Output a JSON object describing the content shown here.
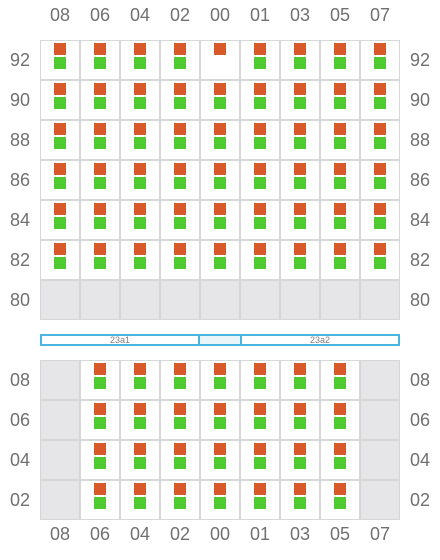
{
  "columns": [
    "08",
    "06",
    "04",
    "02",
    "00",
    "01",
    "03",
    "05",
    "07"
  ],
  "top_rows": [
    "92",
    "90",
    "88",
    "86",
    "84",
    "82",
    "80"
  ],
  "bottom_rows": [
    "08",
    "06",
    "04",
    "02"
  ],
  "colors": {
    "upper_square": "#d85a2a",
    "lower_square": "#4fcb2f",
    "empty_cell": "#e6e6e8",
    "grid_line": "#d6d6d6",
    "divider": "#49b6e0"
  },
  "divider": {
    "left_label": "23a1",
    "right_label": "23a2"
  },
  "top_cells": [
    [
      "both",
      "both",
      "both",
      "both",
      "upper",
      "both",
      "both",
      "both",
      "both"
    ],
    [
      "both",
      "both",
      "both",
      "both",
      "both",
      "both",
      "both",
      "both",
      "both"
    ],
    [
      "both",
      "both",
      "both",
      "both",
      "both",
      "both",
      "both",
      "both",
      "both"
    ],
    [
      "both",
      "both",
      "both",
      "both",
      "both",
      "both",
      "both",
      "both",
      "both"
    ],
    [
      "both",
      "both",
      "both",
      "both",
      "both",
      "both",
      "both",
      "both",
      "both"
    ],
    [
      "both",
      "both",
      "both",
      "both",
      "both",
      "both",
      "both",
      "both",
      "both"
    ],
    [
      "empty",
      "empty",
      "empty",
      "empty",
      "empty",
      "empty",
      "empty",
      "empty",
      "empty"
    ]
  ],
  "bottom_cells": [
    [
      "empty",
      "both",
      "both",
      "both",
      "both",
      "both",
      "both",
      "both",
      "empty"
    ],
    [
      "empty",
      "both",
      "both",
      "both",
      "both",
      "both",
      "both",
      "both",
      "empty"
    ],
    [
      "empty",
      "both",
      "both",
      "both",
      "both",
      "both",
      "both",
      "both",
      "empty"
    ],
    [
      "empty",
      "both",
      "both",
      "both",
      "both",
      "both",
      "both",
      "both",
      "empty"
    ]
  ]
}
